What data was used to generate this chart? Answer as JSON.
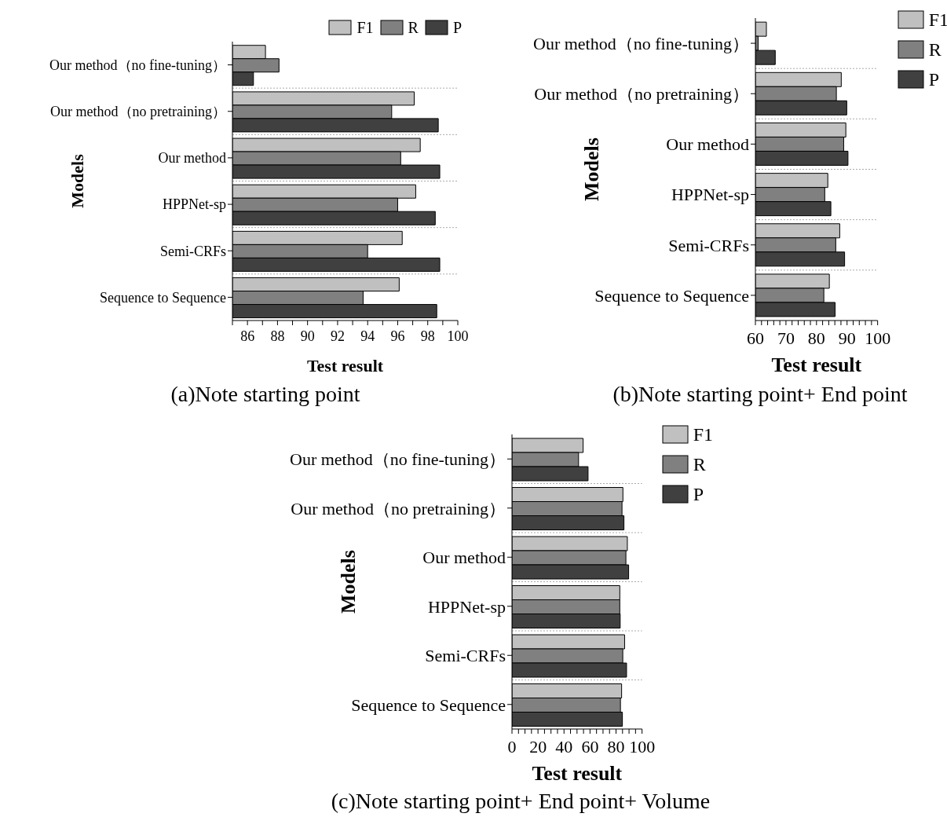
{
  "chart_data": [
    {
      "type": "bar",
      "orientation": "horizontal",
      "title": "(a)Note starting point",
      "xlabel": "Test result",
      "ylabel": "Models",
      "categories": [
        "Our method（no fine-tuning）",
        "Our method（no pretraining）",
        "Our method",
        "HPPNet-sp",
        "Semi-CRFs",
        "Sequence to Sequence"
      ],
      "series": [
        {
          "name": "F1",
          "color": "#c0c0c0",
          "values": [
            87.2,
            97.1,
            97.5,
            97.2,
            96.3,
            96.1
          ]
        },
        {
          "name": "R",
          "color": "#808080",
          "values": [
            88.1,
            95.6,
            96.2,
            96.0,
            94.0,
            93.7
          ]
        },
        {
          "name": "P",
          "color": "#404040",
          "values": [
            86.4,
            98.7,
            98.8,
            98.5,
            98.8,
            98.6
          ]
        }
      ],
      "xlim": [
        85,
        100
      ],
      "xticks": [
        {
          "value": 85,
          "label": null
        },
        86,
        {
          "value": 87,
          "label": null
        },
        88,
        {
          "value": 89,
          "label": null
        },
        90,
        {
          "value": 91,
          "label": null
        },
        92,
        {
          "value": 93,
          "label": null
        },
        94,
        {
          "value": 95,
          "label": null
        },
        96,
        {
          "value": 97,
          "label": null
        },
        98,
        {
          "value": 99,
          "label": null
        },
        100
      ],
      "grid": "y",
      "legend": "top right"
    },
    {
      "type": "bar",
      "orientation": "horizontal",
      "title": "(b)Note starting point+ End point",
      "xlabel": "Test result",
      "ylabel": "Models",
      "categories": [
        "Our method（no fine-tuning）",
        "Our method（no pretraining）",
        "Our method",
        "HPPNet-sp",
        "Semi-CRFs",
        "Sequence to Sequence"
      ],
      "series": [
        {
          "name": "F1",
          "color": "#c0c0c0",
          "values": [
            63.6,
            88.1,
            89.6,
            83.7,
            87.6,
            84.2
          ]
        },
        {
          "name": "R",
          "color": "#808080",
          "values": [
            60.9,
            86.5,
            88.9,
            82.7,
            86.3,
            82.4
          ]
        },
        {
          "name": "P",
          "color": "#404040",
          "values": [
            66.5,
            89.9,
            90.3,
            84.7,
            89.2,
            86.1
          ]
        }
      ],
      "xlim": [
        60,
        100
      ],
      "xticks": [
        60,
        {
          "value": 62,
          "label": null
        },
        {
          "value": 64,
          "label": null
        },
        {
          "value": 66,
          "label": null
        },
        {
          "value": 68,
          "label": null
        },
        70,
        {
          "value": 72,
          "label": null
        },
        {
          "value": 74,
          "label": null
        },
        {
          "value": 76,
          "label": null
        },
        {
          "value": 78,
          "label": null
        },
        80,
        {
          "value": 82,
          "label": null
        },
        {
          "value": 84,
          "label": null
        },
        {
          "value": 86,
          "label": null
        },
        {
          "value": 88,
          "label": null
        },
        90,
        {
          "value": 92,
          "label": null
        },
        {
          "value": 94,
          "label": null
        },
        {
          "value": 96,
          "label": null
        },
        {
          "value": 98,
          "label": null
        },
        100
      ],
      "grid": "y",
      "legend": "top right"
    },
    {
      "type": "bar",
      "orientation": "horizontal",
      "title": "(c)Note starting point+ End point+ Volume",
      "xlabel": "Test result",
      "ylabel": "Models",
      "categories": [
        "Our method（no fine-tuning）",
        "Our method（no pretraining）",
        "Our method",
        "HPPNet-sp",
        "Semi-CRFs",
        "Sequence to Sequence"
      ],
      "series": [
        {
          "name": "F1",
          "color": "#c0c0c0",
          "values": [
            54.7,
            85.3,
            88.7,
            82.9,
            86.6,
            84.3
          ]
        },
        {
          "name": "R",
          "color": "#808080",
          "values": [
            51.2,
            84.6,
            87.6,
            82.9,
            85.2,
            83.4
          ]
        },
        {
          "name": "P",
          "color": "#404040",
          "values": [
            58.5,
            86.1,
            89.7,
            83.2,
            88.1,
            84.9
          ]
        }
      ],
      "xlim": [
        0,
        100
      ],
      "xticks": [
        0,
        {
          "value": 5,
          "label": null
        },
        {
          "value": 10,
          "label": null
        },
        {
          "value": 15,
          "label": null
        },
        20,
        {
          "value": 25,
          "label": null
        },
        {
          "value": 30,
          "label": null
        },
        {
          "value": 35,
          "label": null
        },
        40,
        {
          "value": 45,
          "label": null
        },
        {
          "value": 50,
          "label": null
        },
        {
          "value": 55,
          "label": null
        },
        60,
        {
          "value": 65,
          "label": null
        },
        {
          "value": 70,
          "label": null
        },
        {
          "value": 75,
          "label": null
        },
        80,
        {
          "value": 85,
          "label": null
        },
        {
          "value": 90,
          "label": null
        },
        {
          "value": 95,
          "label": null
        },
        100
      ],
      "grid": "y",
      "legend": "top right"
    }
  ]
}
